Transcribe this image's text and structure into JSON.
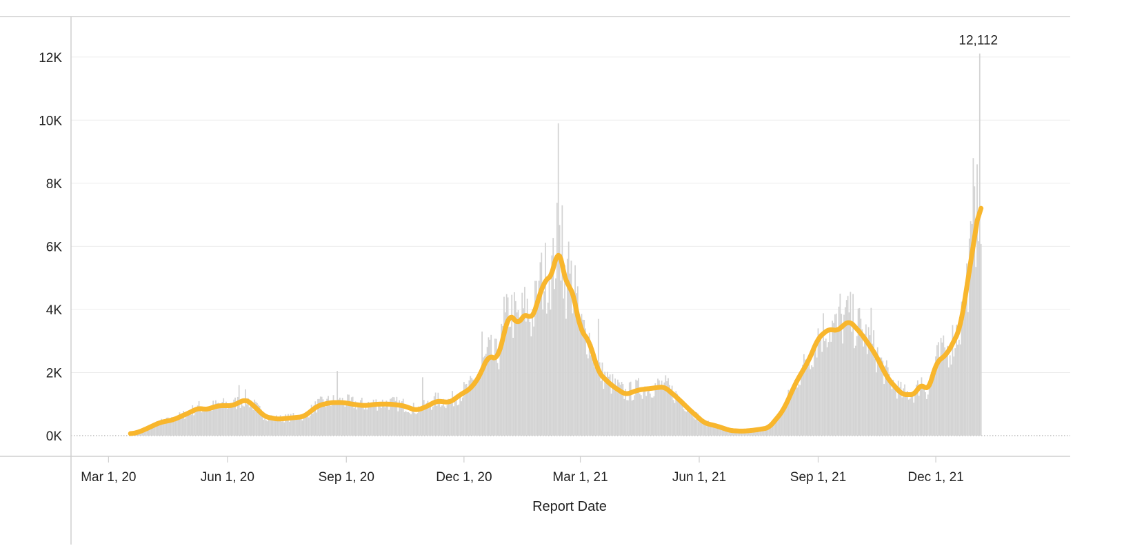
{
  "chart_data": {
    "type": "bar",
    "title": "",
    "xlabel": "Report Date",
    "ylabel": "",
    "x_domain": [
      "2020-02-01",
      "2022-03-15"
    ],
    "ylim": [
      0,
      13000
    ],
    "y_ticks": [
      {
        "value": 0,
        "label": "0K"
      },
      {
        "value": 2000,
        "label": "2K"
      },
      {
        "value": 4000,
        "label": "4K"
      },
      {
        "value": 6000,
        "label": "6K"
      },
      {
        "value": 8000,
        "label": "8K"
      },
      {
        "value": 10000,
        "label": "10K"
      },
      {
        "value": 12000,
        "label": "12K"
      }
    ],
    "x_ticks": [
      {
        "date": "2020-03-01",
        "label": "Mar 1, 20"
      },
      {
        "date": "2020-06-01",
        "label": "Jun 1, 20"
      },
      {
        "date": "2020-09-01",
        "label": "Sep 1, 20"
      },
      {
        "date": "2020-12-01",
        "label": "Dec 1, 20"
      },
      {
        "date": "2021-03-01",
        "label": "Mar 1, 21"
      },
      {
        "date": "2021-06-01",
        "label": "Jun 1, 21"
      },
      {
        "date": "2021-09-01",
        "label": "Sep 1, 21"
      },
      {
        "date": "2021-12-01",
        "label": "Dec 1, 21"
      }
    ],
    "grid": true,
    "legend": "none",
    "bar_color": "#d3d3d3",
    "line_color": "#f8b62d",
    "daily_series": {
      "name": "",
      "date_step_days": 1,
      "anchors": [
        [
          "2020-03-18",
          50
        ],
        [
          "2020-03-25",
          120
        ],
        [
          "2020-04-01",
          250
        ],
        [
          "2020-04-10",
          420
        ],
        [
          "2020-04-20",
          500
        ],
        [
          "2020-05-01",
          700
        ],
        [
          "2020-05-10",
          880
        ],
        [
          "2020-05-15",
          820
        ],
        [
          "2020-05-25",
          950
        ],
        [
          "2020-06-05",
          950
        ],
        [
          "2020-06-15",
          1150
        ],
        [
          "2020-06-20",
          1000
        ],
        [
          "2020-06-30",
          600
        ],
        [
          "2020-07-10",
          520
        ],
        [
          "2020-07-20",
          560
        ],
        [
          "2020-07-30",
          600
        ],
        [
          "2020-08-10",
          950
        ],
        [
          "2020-08-20",
          1050
        ],
        [
          "2020-08-30",
          1050
        ],
        [
          "2020-09-05",
          1000
        ],
        [
          "2020-09-15",
          950
        ],
        [
          "2020-09-25",
          1000
        ],
        [
          "2020-10-05",
          1000
        ],
        [
          "2020-10-15",
          950
        ],
        [
          "2020-10-25",
          800
        ],
        [
          "2020-11-01",
          900
        ],
        [
          "2020-11-10",
          1100
        ],
        [
          "2020-11-20",
          1050
        ],
        [
          "2020-11-30",
          1350
        ],
        [
          "2020-12-05",
          1450
        ],
        [
          "2020-12-12",
          1800
        ],
        [
          "2020-12-20",
          2550
        ],
        [
          "2020-12-27",
          2400
        ],
        [
          "2021-01-05",
          3900
        ],
        [
          "2021-01-12",
          3500
        ],
        [
          "2021-01-18",
          3950
        ],
        [
          "2021-01-22",
          3600
        ],
        [
          "2021-02-01",
          4900
        ],
        [
          "2021-02-08",
          5100
        ],
        [
          "2021-02-12",
          6150
        ],
        [
          "2021-02-18",
          4700
        ],
        [
          "2021-02-22",
          4800
        ],
        [
          "2021-03-01",
          3350
        ],
        [
          "2021-03-08",
          3000
        ],
        [
          "2021-03-15",
          2000
        ],
        [
          "2021-03-25",
          1600
        ],
        [
          "2021-04-05",
          1300
        ],
        [
          "2021-04-15",
          1450
        ],
        [
          "2021-04-25",
          1500
        ],
        [
          "2021-05-05",
          1550
        ],
        [
          "2021-05-15",
          1200
        ],
        [
          "2021-05-25",
          800
        ],
        [
          "2021-06-05",
          400
        ],
        [
          "2021-06-15",
          300
        ],
        [
          "2021-06-25",
          160
        ],
        [
          "2021-07-05",
          140
        ],
        [
          "2021-07-15",
          180
        ],
        [
          "2021-07-25",
          250
        ],
        [
          "2021-08-05",
          800
        ],
        [
          "2021-08-15",
          1700
        ],
        [
          "2021-08-25",
          2400
        ],
        [
          "2021-09-01",
          3100
        ],
        [
          "2021-09-10",
          3400
        ],
        [
          "2021-09-15",
          3300
        ],
        [
          "2021-09-25",
          3650
        ],
        [
          "2021-10-05",
          3200
        ],
        [
          "2021-10-15",
          2600
        ],
        [
          "2021-10-25",
          1800
        ],
        [
          "2021-11-05",
          1300
        ],
        [
          "2021-11-15",
          1300
        ],
        [
          "2021-11-20",
          1700
        ],
        [
          "2021-11-25",
          1350
        ],
        [
          "2021-12-01",
          2300
        ],
        [
          "2021-12-10",
          2600
        ],
        [
          "2021-12-20",
          3400
        ],
        [
          "2021-12-28",
          5500
        ],
        [
          "2022-01-05",
          7600
        ]
      ],
      "spikes": [
        [
          "2021-02-12",
          9900
        ],
        [
          "2021-02-15",
          7300
        ],
        [
          "2021-02-20",
          6150
        ],
        [
          "2021-01-30",
          5800
        ],
        [
          "2021-02-25",
          5400
        ],
        [
          "2020-12-15",
          3300
        ],
        [
          "2021-01-01",
          4400
        ],
        [
          "2020-08-25",
          2050
        ],
        [
          "2020-06-10",
          1600
        ],
        [
          "2020-10-30",
          1850
        ],
        [
          "2021-03-15",
          3700
        ],
        [
          "2021-09-18",
          4500
        ],
        [
          "2021-09-23",
          4300
        ],
        [
          "2021-10-12",
          4050
        ],
        [
          "2021-12-05",
          3100
        ],
        [
          "2021-12-22",
          4000
        ],
        [
          "2021-12-30",
          8800
        ],
        [
          "2022-01-02",
          8600
        ],
        [
          "2022-01-04",
          12112
        ]
      ],
      "peak_label": {
        "date": "2022-01-04",
        "value": 12112,
        "text": "12,112"
      }
    }
  }
}
